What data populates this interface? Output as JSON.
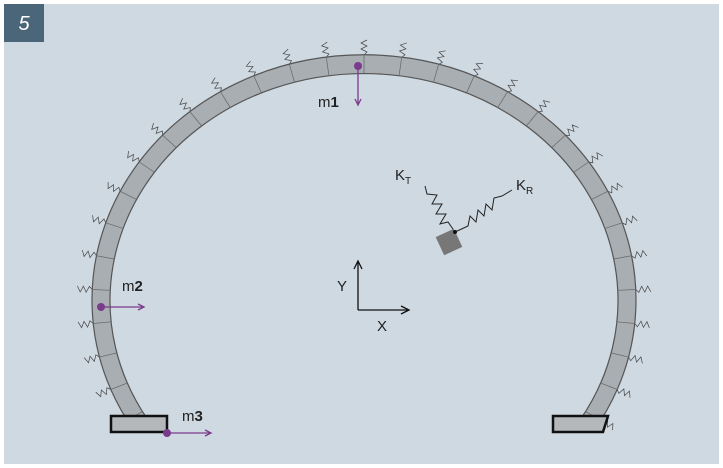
{
  "figure_number": "5",
  "labels": {
    "m1": {
      "base": "m",
      "index": "1"
    },
    "m2": {
      "base": "m",
      "index": "2"
    },
    "m3": {
      "base": "m",
      "index": "3"
    },
    "kt": {
      "base": "K",
      "sub": "T"
    },
    "kr": {
      "base": "K",
      "sub": "R"
    },
    "axis_y": "Y",
    "axis_x": "X"
  }
}
